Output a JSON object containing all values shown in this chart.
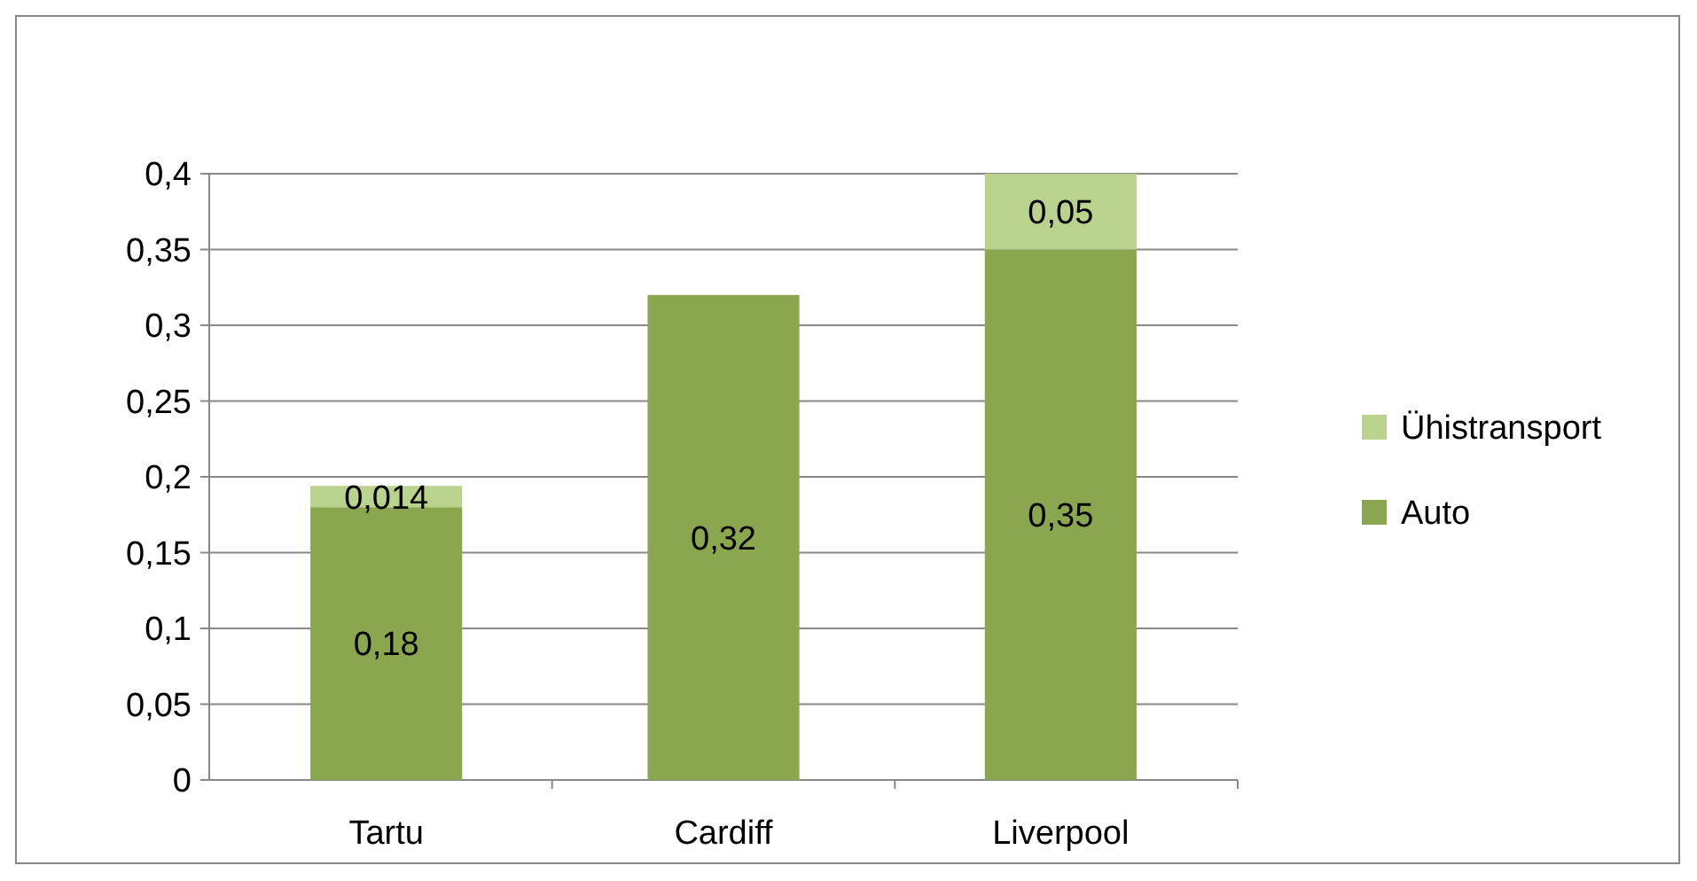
{
  "chart_data": {
    "type": "bar",
    "stacked": true,
    "categories": [
      "Tartu",
      "Cardiff",
      "Liverpool"
    ],
    "series": [
      {
        "name": "Auto",
        "color": "#8aa64e",
        "values": [
          0.18,
          0.32,
          0.35
        ],
        "value_labels": [
          "0,18",
          "0,32",
          "0,35"
        ]
      },
      {
        "name": "Ühistransport",
        "color": "#b9d28d",
        "values": [
          0.014,
          null,
          0.05
        ],
        "value_labels": [
          "0,014",
          null,
          "0,05"
        ]
      }
    ],
    "ylim": [
      0,
      0.4
    ],
    "yticks": [
      {
        "value": 0,
        "label": "0"
      },
      {
        "value": 0.05,
        "label": "0,05"
      },
      {
        "value": 0.1,
        "label": "0,1"
      },
      {
        "value": 0.15,
        "label": "0,15"
      },
      {
        "value": 0.2,
        "label": "0,2"
      },
      {
        "value": 0.25,
        "label": "0,25"
      },
      {
        "value": 0.3,
        "label": "0,3"
      },
      {
        "value": 0.35,
        "label": "0,35"
      },
      {
        "value": 0.4,
        "label": "0,4"
      }
    ],
    "grid": "y",
    "legend": "right"
  }
}
